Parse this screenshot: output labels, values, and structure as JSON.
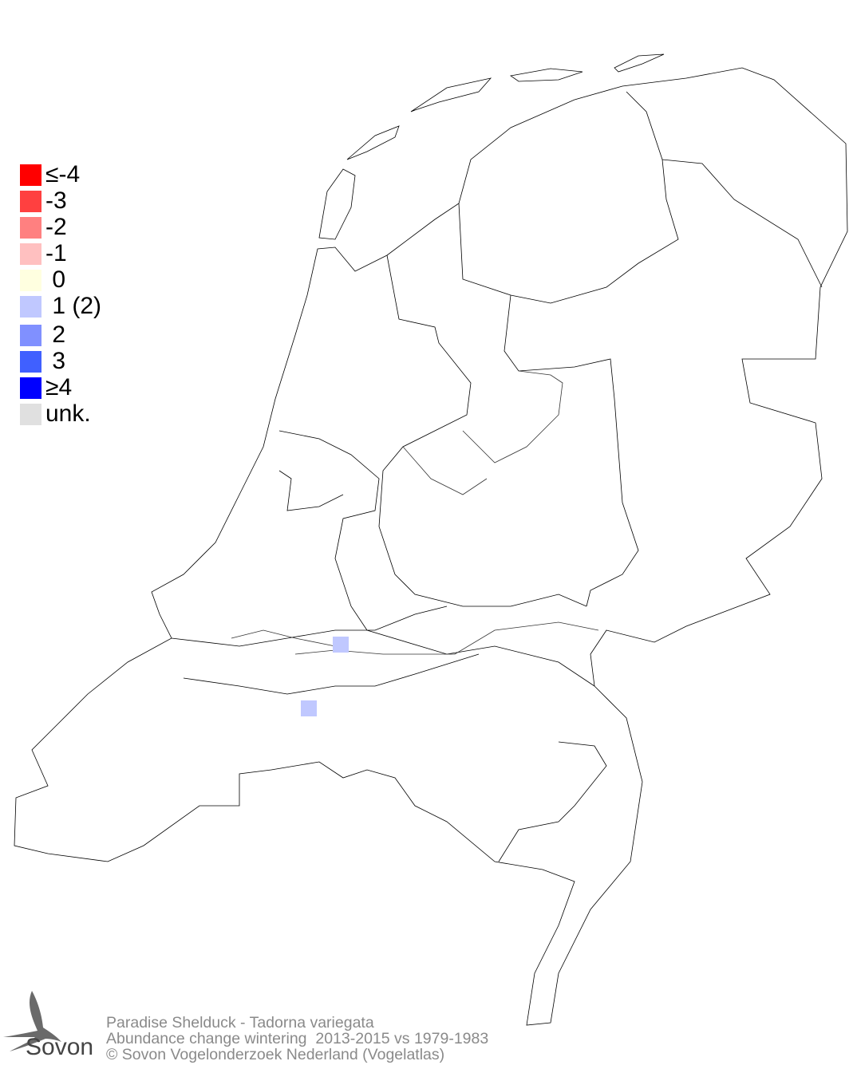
{
  "legend": {
    "items": [
      {
        "label": "≤-4",
        "color": "#ff0000"
      },
      {
        "label": "-3",
        "color": "#ff4040"
      },
      {
        "label": "-2",
        "color": "#ff8080"
      },
      {
        "label": "-1",
        "color": "#ffc0c0"
      },
      {
        "label": " 0",
        "color": "#ffffe0"
      },
      {
        "label": " 1 (2)",
        "color": "#c0c8ff"
      },
      {
        "label": " 2",
        "color": "#8090ff"
      },
      {
        "label": " 3",
        "color": "#4060ff"
      },
      {
        "label": "≥4",
        "color": "#0000ff"
      },
      {
        "label": "unk.",
        "color": "#e0e0e0"
      }
    ]
  },
  "map": {
    "region": "Netherlands",
    "cells": [
      {
        "class": "1",
        "color": "#c0c8ff"
      },
      {
        "class": "1",
        "color": "#c0c8ff"
      }
    ]
  },
  "footer": {
    "species": "Paradise Shelduck - Tadorna variegata",
    "subtitle": "Abundance change wintering  2013-2015 vs 1979-1983",
    "copyright": "© Sovon Vogelonderzoek Nederland (Vogelatlas)"
  },
  "logo": {
    "text": "Sovon"
  }
}
